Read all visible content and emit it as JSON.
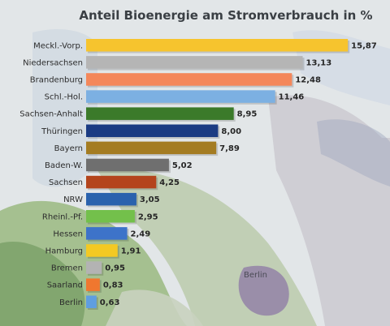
{
  "chart_data": {
    "type": "bar",
    "orientation": "horizontal",
    "title": "Anteil Bioenergie am Stromverbrauch in %",
    "xlabel": "",
    "ylabel": "",
    "xlim": [
      0,
      16
    ],
    "grid": false,
    "legend": "none",
    "categories": [
      "Meckl.-Vorp.",
      "Niedersachsen",
      "Brandenburg",
      "Schl.-Hol.",
      "Sachsen-Anhalt",
      "Thüringen",
      "Bayern",
      "Baden-W.",
      "Sachsen",
      "NRW",
      "Rheinl.-Pf.",
      "Hessen",
      "Hamburg",
      "Bremen",
      "Saarland",
      "Berlin"
    ],
    "values": [
      15.87,
      13.13,
      12.48,
      11.46,
      8.95,
      8.0,
      7.89,
      5.02,
      4.25,
      3.05,
      2.95,
      2.49,
      1.91,
      0.95,
      0.83,
      0.63
    ],
    "value_labels": [
      "15,87",
      "13,13",
      "12,48",
      "11,46",
      "8,95",
      "8,00",
      "7,89",
      "5,02",
      "4,25",
      "3,05",
      "2,95",
      "2,49",
      "1,91",
      "0,95",
      "0,83",
      "0,63"
    ],
    "colors": [
      "#f6c42e",
      "#b5b5b5",
      "#f4875a",
      "#7cb0e2",
      "#3b7a2a",
      "#1b3b83",
      "#a47c22",
      "#6f6f6f",
      "#b4441c",
      "#2a62ad",
      "#73c04b",
      "#3d73c9",
      "#f3c923",
      "#b3b3b3",
      "#f0772f",
      "#5f9ee0"
    ]
  },
  "background": {
    "map_labels": [
      "Berlin"
    ]
  }
}
